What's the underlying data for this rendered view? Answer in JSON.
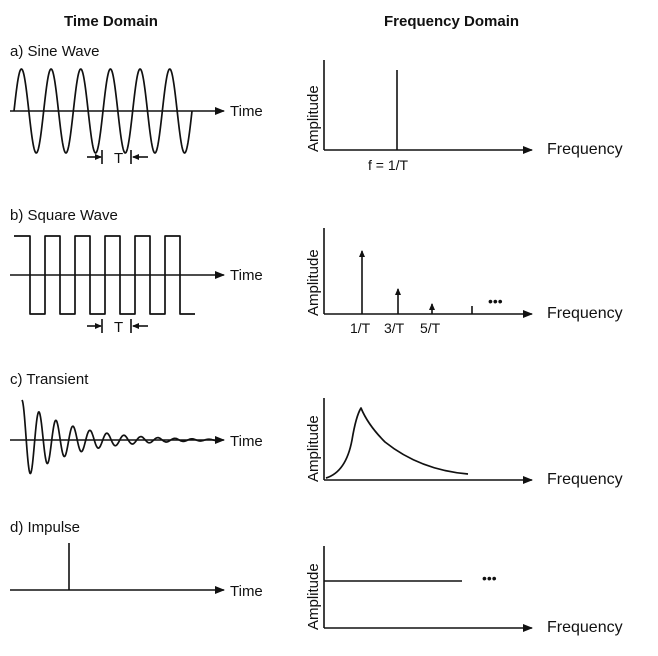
{
  "headers": {
    "time_domain": "Time Domain",
    "frequency_domain": "Frequency Domain"
  },
  "sections": [
    {
      "id": "a",
      "title": "a) Sine Wave",
      "time_label": "Time",
      "period_label": "T",
      "amp_label": "Amplitude",
      "freq_label": "Frequency",
      "peak_label": "f = 1/T"
    },
    {
      "id": "b",
      "title": "b) Square Wave",
      "time_label": "Time",
      "period_label": "T",
      "amp_label": "Amplitude",
      "freq_label": "Frequency",
      "harmonics": [
        "1/T",
        "3/T",
        "5/T"
      ],
      "ellipsis": "•••"
    },
    {
      "id": "c",
      "title": "c) Transient",
      "time_label": "Time",
      "amp_label": "Amplitude",
      "freq_label": "Frequency"
    },
    {
      "id": "d",
      "title": "d) Impulse",
      "time_label": "Time",
      "amp_label": "Amplitude",
      "freq_label": "Frequency",
      "ellipsis": "•••"
    }
  ],
  "colors": {
    "ink": "#111111",
    "background": "#ffffff"
  }
}
